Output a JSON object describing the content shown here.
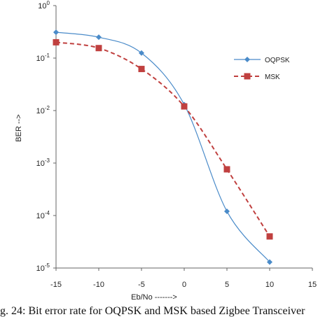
{
  "chart_data": {
    "type": "line",
    "title": "",
    "xlabel": "Eb/No ------->",
    "ylabel": "BER -->",
    "xlim": [
      -15,
      15
    ],
    "ylim": [
      1e-05,
      1
    ],
    "yscale": "log",
    "grid": false,
    "legend_position": "right",
    "x_ticks": [
      "-15",
      "-10",
      "-5",
      "0",
      "5",
      "10",
      "15"
    ],
    "y_ticks": [
      {
        "base": "10",
        "exp": "0"
      },
      {
        "base": "10",
        "exp": "-1"
      },
      {
        "base": "10",
        "exp": "-2"
      },
      {
        "base": "10",
        "exp": "-3"
      },
      {
        "base": "10",
        "exp": "-4"
      },
      {
        "base": "10",
        "exp": "-5"
      }
    ],
    "x": [
      -15,
      -10,
      -5,
      0,
      5,
      10
    ],
    "series": [
      {
        "name": "OQPSK",
        "color": "#4a8bc9",
        "marker": "diamond",
        "line": "solid",
        "values": [
          0.31,
          0.25,
          0.125,
          0.013,
          0.00012,
          1.3e-05
        ]
      },
      {
        "name": "MSK",
        "color": "#c0403f",
        "marker": "square",
        "line": "dashed",
        "values": [
          0.2,
          0.155,
          0.062,
          0.012,
          0.00076,
          4e-05
        ]
      }
    ]
  },
  "caption": "g. 24: Bit error rate for OQPSK and MSK based Zigbee Transceiver"
}
